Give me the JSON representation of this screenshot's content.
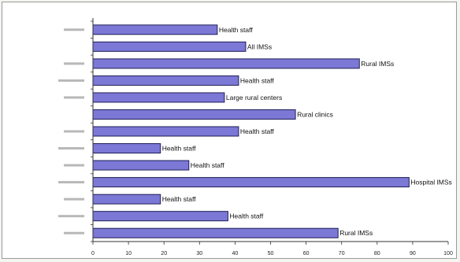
{
  "chart_data": {
    "type": "bar",
    "orientation": "horizontal",
    "title": "",
    "xlabel": "",
    "ylabel": "",
    "xlim": [
      0,
      100
    ],
    "xticks": [
      0,
      10,
      20,
      30,
      40,
      50,
      60,
      70,
      80,
      90,
      100
    ],
    "grid": false,
    "legend": "none",
    "bar_color": "#7b78d6",
    "bar_edge_color": "#1e1e55",
    "bars": [
      {
        "value": 35,
        "label": "Health staff"
      },
      {
        "value": 43,
        "label": "All IMSs"
      },
      {
        "value": 75,
        "label": "Rural IMSs"
      },
      {
        "value": 41,
        "label": "Health staff"
      },
      {
        "value": 37,
        "label": "Large rural centers"
      },
      {
        "value": 57,
        "label": "Rural clinics"
      },
      {
        "value": 41,
        "label": "Health staff"
      },
      {
        "value": 19,
        "label": "Health staff"
      },
      {
        "value": 27,
        "label": "Health staff"
      },
      {
        "value": 89,
        "label": "Hospital IMSs"
      },
      {
        "value": 19,
        "label": "Health staff"
      },
      {
        "value": 38,
        "label": "Health staff"
      },
      {
        "value": 69,
        "label": "Rural IMSs"
      }
    ]
  }
}
